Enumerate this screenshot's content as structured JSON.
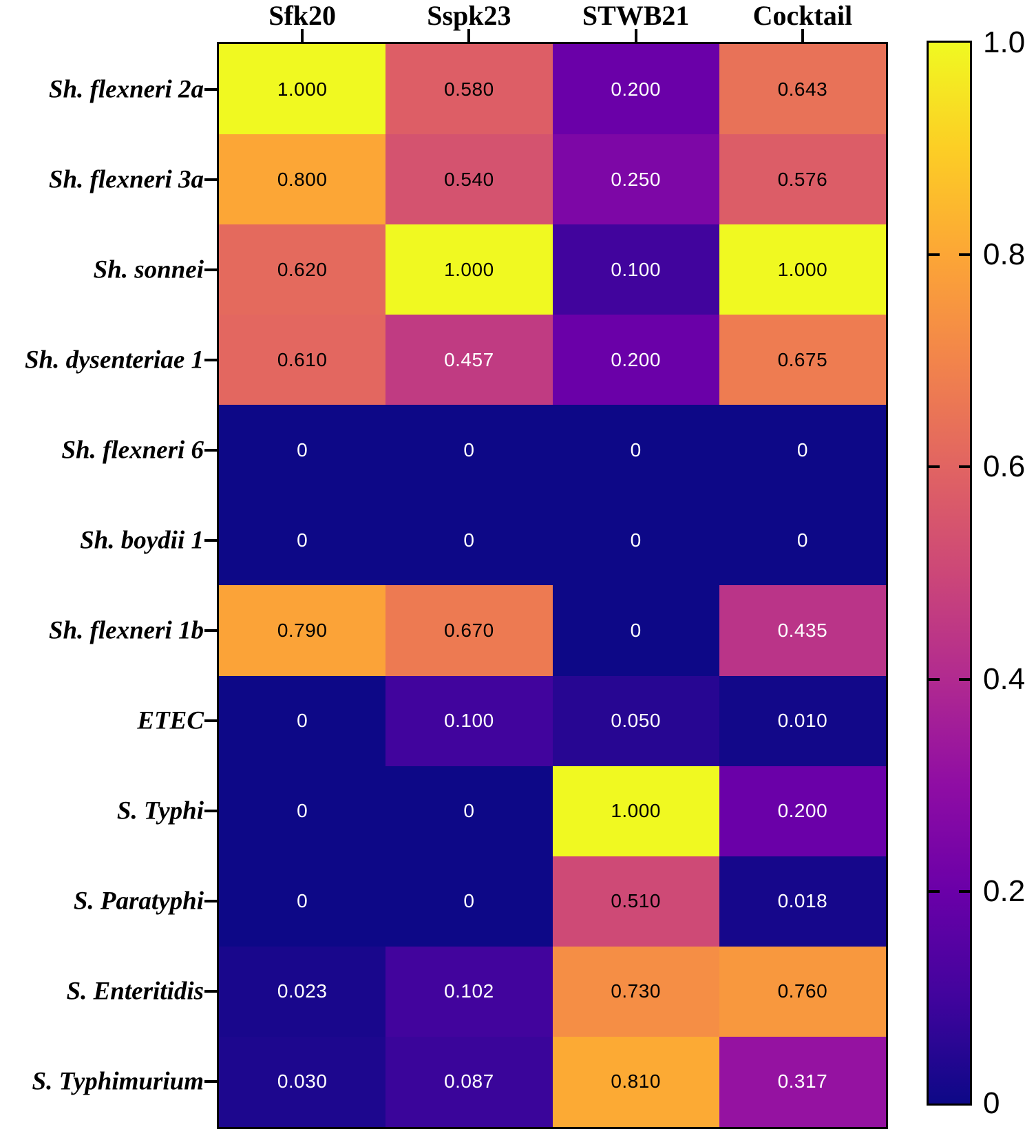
{
  "chart_data": {
    "type": "heatmap",
    "title": "",
    "columns": [
      "Sfk20",
      "Sspk23",
      "STWB21",
      "Cocktail"
    ],
    "rows": [
      "Sh. flexneri 2a",
      "Sh. flexneri 3a",
      "Sh. sonnei",
      "Sh. dysenteriae 1",
      "Sh. flexneri 6",
      "Sh. boydii 1",
      "Sh. flexneri 1b",
      "ETEC",
      "S. Typhi",
      "S. Paratyphi",
      "S. Enteritidis",
      "S. Typhimurium"
    ],
    "values": [
      [
        1.0,
        0.58,
        0.2,
        0.643
      ],
      [
        0.8,
        0.54,
        0.25,
        0.576
      ],
      [
        0.62,
        1.0,
        0.1,
        1.0
      ],
      [
        0.61,
        0.457,
        0.2,
        0.675
      ],
      [
        0,
        0,
        0,
        0
      ],
      [
        0,
        0,
        0,
        0
      ],
      [
        0.79,
        0.67,
        0,
        0.435
      ],
      [
        0,
        0.1,
        0.05,
        0.01
      ],
      [
        0,
        0,
        1.0,
        0.2
      ],
      [
        0,
        0,
        0.51,
        0.018
      ],
      [
        0.023,
        0.102,
        0.73,
        0.76
      ],
      [
        0.03,
        0.087,
        0.81,
        0.317
      ]
    ],
    "cell_labels": [
      [
        "1.000",
        "0.580",
        "0.200",
        "0.643"
      ],
      [
        "0.800",
        "0.540",
        "0.250",
        "0.576"
      ],
      [
        "0.620",
        "1.000",
        "0.100",
        "1.000"
      ],
      [
        "0.610",
        "0.457",
        "0.200",
        "0.675"
      ],
      [
        "0",
        "0",
        "0",
        "0"
      ],
      [
        "0",
        "0",
        "0",
        "0"
      ],
      [
        "0.790",
        "0.670",
        "0",
        "0.435"
      ],
      [
        "0",
        "0.100",
        "0.050",
        "0.010"
      ],
      [
        "0",
        "0",
        "1.000",
        "0.200"
      ],
      [
        "0",
        "0",
        "0.510",
        "0.018"
      ],
      [
        "0.023",
        "0.102",
        "0.730",
        "0.760"
      ],
      [
        "0.030",
        "0.087",
        "0.810",
        "0.317"
      ]
    ],
    "colormap": "plasma",
    "value_range": [
      0,
      1
    ],
    "grid": false,
    "colorbar": {
      "position": "right",
      "tick_values": [
        1.0,
        0.8,
        0.6,
        0.4,
        0.2,
        0
      ],
      "tick_labels": [
        "1.0",
        "0.8",
        "0.6",
        "0.4",
        "0.2",
        "0"
      ]
    }
  },
  "colors": {
    "background": "#ffffff",
    "border": "#000000",
    "cell_text_dark": "#000000",
    "cell_text_light": "#ffffff",
    "plasma_stops": [
      "#0d0887",
      "#41049d",
      "#6a00a8",
      "#8f0da4",
      "#b12a90",
      "#cc4778",
      "#e16462",
      "#f2844b",
      "#fca636",
      "#fcce25",
      "#f0f921"
    ]
  }
}
